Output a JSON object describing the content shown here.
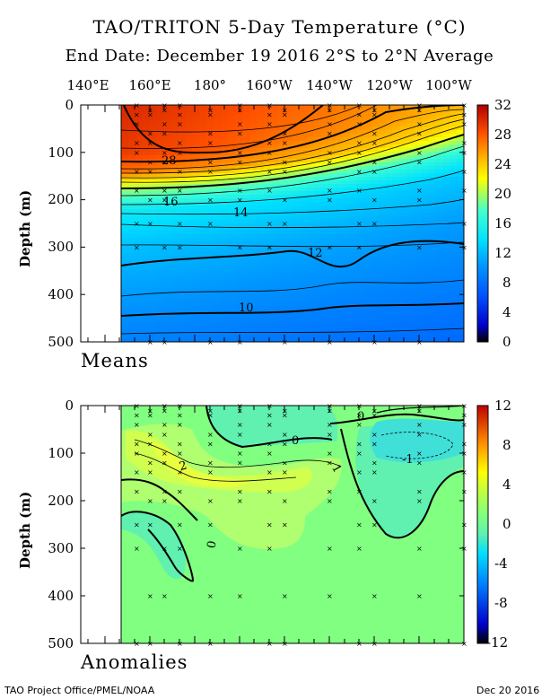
{
  "title": "TAO/TRITON 5-Day Temperature (°C)",
  "subtitle": "End Date: December 19 2016  2°S to 2°N Average",
  "footer_left": "TAO Project Office/PMEL/NOAA",
  "footer_right": "Dec 20 2016",
  "colors": {
    "background": "#ffffff",
    "axis": "#000000",
    "nodata": "#ffffff"
  },
  "chart_data": [
    {
      "type": "heatmap",
      "panel_label": "Means",
      "x_tick_labels": [
        "140°E",
        "160°E",
        "180°",
        "160°W",
        "140°W",
        "120°W",
        "100°W"
      ],
      "ylabel": "Depth (m)",
      "y_tick_labels": [
        "0",
        "100",
        "200",
        "300",
        "400",
        "500"
      ],
      "ylim": [
        0,
        500
      ],
      "colorbar_ticks": [
        "32",
        "28",
        "24",
        "20",
        "16",
        "12",
        "8",
        "4",
        "0"
      ],
      "colorbar_range": [
        0,
        32
      ],
      "contour_labels": [
        "28",
        "16",
        "14",
        "12",
        "10"
      ],
      "profile_depth_m": [
        0,
        100,
        140,
        180,
        220,
        300,
        400,
        500
      ],
      "profile_temp_west": [
        30,
        29,
        27,
        19,
        14.5,
        12,
        10.3,
        8.8
      ],
      "profile_temp_east": [
        24,
        14.5,
        13.5,
        12.8,
        12.3,
        11.5,
        10,
        8.6
      ]
    },
    {
      "type": "heatmap",
      "panel_label": "Anomalies",
      "x_tick_labels": [],
      "ylabel": "Depth (m)",
      "y_tick_labels": [
        "0",
        "100",
        "200",
        "300",
        "400",
        "500"
      ],
      "ylim": [
        0,
        500
      ],
      "colorbar_ticks": [
        "12",
        "8",
        "4",
        "0",
        "-4",
        "-8",
        "-12"
      ],
      "colorbar_range": [
        -12,
        12
      ],
      "contour_labels": [
        "2",
        "0",
        "1",
        "0",
        "-1",
        "0"
      ]
    }
  ]
}
